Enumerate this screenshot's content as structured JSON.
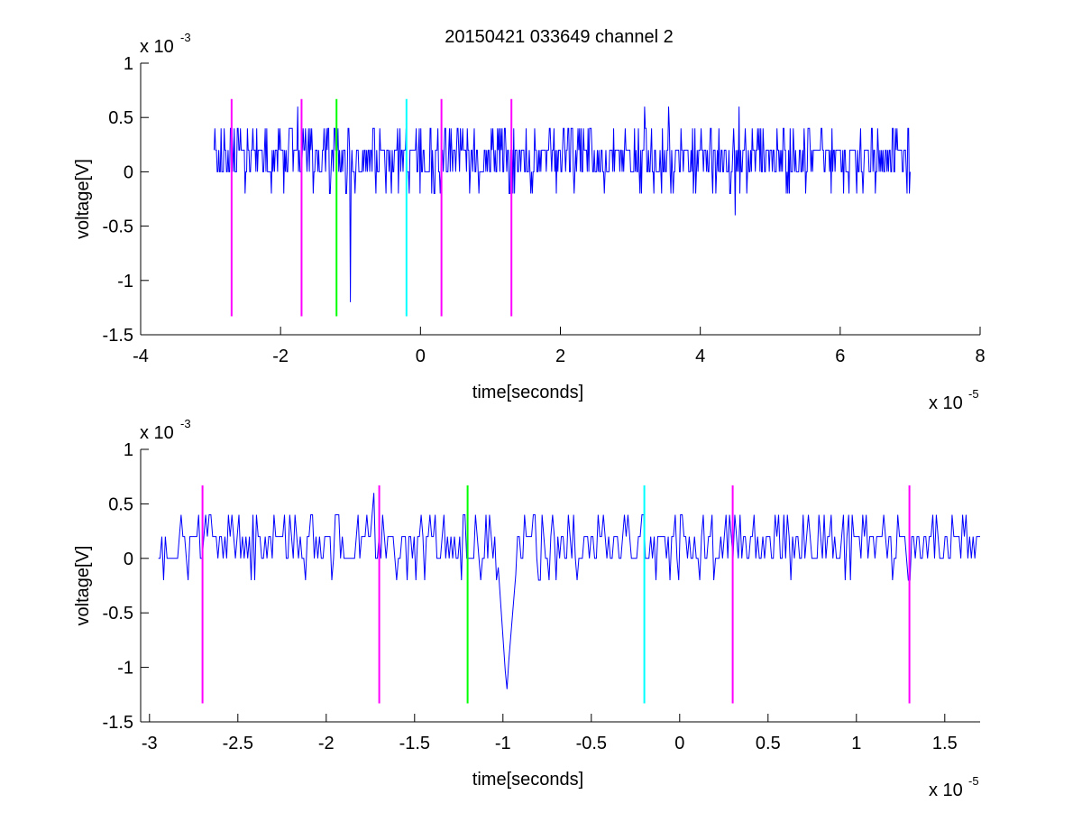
{
  "figure": {
    "title": "20150421 033649 channel 2"
  },
  "chart_data": [
    {
      "type": "line",
      "xlabel": "time[seconds]",
      "ylabel": "voltage[V]",
      "x_exponent_label": "x 10",
      "x_exponent": "-5",
      "y_exponent_label": "x 10",
      "y_exponent": "-3",
      "xlim": [
        -4,
        8
      ],
      "ylim": [
        -1.5,
        1
      ],
      "x_ticks": [
        -4,
        -2,
        0,
        2,
        4,
        6,
        8
      ],
      "x_tick_labels": [
        "-4",
        "-2",
        "0",
        "2",
        "4",
        "6",
        "8"
      ],
      "y_ticks": [
        -1.5,
        -1,
        -0.5,
        0,
        0.5,
        1
      ],
      "y_tick_labels": [
        "-1.5",
        "-1",
        "-0.5",
        "0",
        "0.5",
        "1"
      ],
      "grid": false,
      "series": [
        {
          "color": "#0000ff",
          "x_range": [
            -2.95,
            7.0
          ],
          "samples": 900,
          "baseline_levels": [
            0,
            0.2
          ],
          "spikes": [
            {
              "x": -2.85,
              "y": 0.4
            },
            {
              "x": -2.72,
              "y": 0.4
            },
            {
              "x": -1.75,
              "y": 0.6
            },
            {
              "x": -1.22,
              "y": 0.4
            },
            {
              "x": -1.0,
              "y": -1.2
            },
            {
              "x": -0.2,
              "y": 0.4
            },
            {
              "x": 3.2,
              "y": 0.6
            },
            {
              "x": 3.55,
              "y": 0.6
            },
            {
              "x": 4.5,
              "y": -0.4
            },
            {
              "x": 4.55,
              "y": 0.6
            }
          ]
        }
      ],
      "markers": [
        {
          "x": -2.7,
          "y_bottom": -1.33,
          "y_top": 0.67,
          "color": "#ff00ff"
        },
        {
          "x": -1.7,
          "y_bottom": -1.33,
          "y_top": 0.67,
          "color": "#ff00ff"
        },
        {
          "x": -1.2,
          "y_bottom": -1.33,
          "y_top": 0.67,
          "color": "#00ff00"
        },
        {
          "x": -0.2,
          "y_bottom": -1.33,
          "y_top": 0.67,
          "color": "#00ffff"
        },
        {
          "x": 0.3,
          "y_bottom": -1.33,
          "y_top": 0.67,
          "color": "#ff00ff"
        },
        {
          "x": 1.3,
          "y_bottom": -1.33,
          "y_top": 0.67,
          "color": "#ff00ff"
        }
      ]
    },
    {
      "type": "line",
      "xlabel": "time[seconds]",
      "ylabel": "voltage[V]",
      "x_exponent_label": "x 10",
      "x_exponent": "-5",
      "y_exponent_label": "x 10",
      "y_exponent": "-3",
      "xlim": [
        -3.05,
        1.7
      ],
      "ylim": [
        -1.5,
        1
      ],
      "x_ticks": [
        -3,
        -2.5,
        -2,
        -1.5,
        -1,
        -0.5,
        0,
        0.5,
        1,
        1.5
      ],
      "x_tick_labels": [
        "-3",
        "-2.5",
        "-2",
        "-1.5",
        "-1",
        "-0.5",
        "0",
        "0.5",
        "1",
        "1.5"
      ],
      "y_ticks": [
        -1.5,
        -1,
        -0.5,
        0,
        0.5,
        1
      ],
      "y_tick_labels": [
        "-1.5",
        "-1",
        "-0.5",
        "0",
        "0.5",
        "1"
      ],
      "grid": false,
      "series": [
        {
          "color": "#0000ff",
          "x_range": [
            -2.95,
            1.7
          ],
          "samples": 470,
          "baseline_levels": [
            0,
            0.2
          ],
          "spikes": [
            {
              "x": -2.92,
              "y": -0.2
            },
            {
              "x": -2.72,
              "y": 0.4
            },
            {
              "x": -1.73,
              "y": 0.6
            },
            {
              "x": -1.22,
              "y": 0.4
            },
            {
              "x": -0.98,
              "y": -1.2
            },
            {
              "x": -0.2,
              "y": 0.4
            },
            {
              "x": 0.7,
              "y": 0.4
            },
            {
              "x": 1.15,
              "y": 0.4
            }
          ],
          "dip": {
            "x_start": -1.03,
            "x_min": -0.98,
            "x_end": -0.92,
            "y_min": -1.2
          }
        }
      ],
      "markers": [
        {
          "x": -2.7,
          "y_bottom": -1.33,
          "y_top": 0.67,
          "color": "#ff00ff"
        },
        {
          "x": -1.7,
          "y_bottom": -1.33,
          "y_top": 0.67,
          "color": "#ff00ff"
        },
        {
          "x": -1.2,
          "y_bottom": -1.33,
          "y_top": 0.67,
          "color": "#00ff00"
        },
        {
          "x": -0.2,
          "y_bottom": -1.33,
          "y_top": 0.67,
          "color": "#00ffff"
        },
        {
          "x": 0.3,
          "y_bottom": -1.33,
          "y_top": 0.67,
          "color": "#ff00ff"
        },
        {
          "x": 1.3,
          "y_bottom": -1.33,
          "y_top": 0.67,
          "color": "#ff00ff"
        }
      ]
    }
  ]
}
